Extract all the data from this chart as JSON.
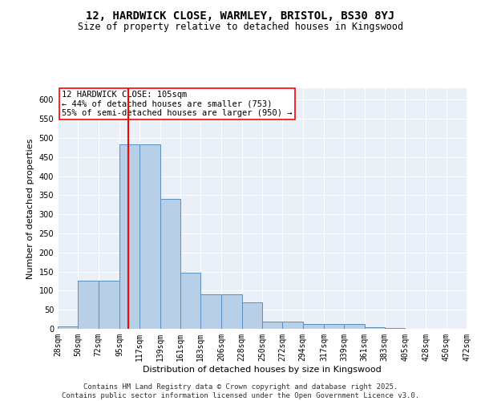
{
  "title1": "12, HARDWICK CLOSE, WARMLEY, BRISTOL, BS30 8YJ",
  "title2": "Size of property relative to detached houses in Kingswood",
  "xlabel": "Distribution of detached houses by size in Kingswood",
  "ylabel": "Number of detached properties",
  "bar_color": "#b8cfe8",
  "bar_edge_color": "#5a8fc2",
  "vline_x": 105,
  "vline_color": "red",
  "annotation_text": "12 HARDWICK CLOSE: 105sqm\n← 44% of detached houses are smaller (753)\n55% of semi-detached houses are larger (950) →",
  "annotation_box_color": "white",
  "annotation_box_edge": "red",
  "bin_edges": [
    28,
    50,
    72,
    95,
    117,
    139,
    161,
    183,
    206,
    228,
    250,
    272,
    294,
    317,
    339,
    361,
    383,
    405,
    428,
    450,
    472
  ],
  "bar_heights": [
    7,
    127,
    127,
    483,
    483,
    340,
    148,
    90,
    90,
    70,
    18,
    18,
    13,
    13,
    13,
    5,
    2,
    0,
    0,
    0
  ],
  "ylim": [
    0,
    630
  ],
  "yticks": [
    0,
    50,
    100,
    150,
    200,
    250,
    300,
    350,
    400,
    450,
    500,
    550,
    600
  ],
  "bg_color": "#eaf0f8",
  "footer": "Contains HM Land Registry data © Crown copyright and database right 2025.\nContains public sector information licensed under the Open Government Licence v3.0.",
  "title1_fontsize": 10,
  "title2_fontsize": 8.5,
  "xlabel_fontsize": 8,
  "ylabel_fontsize": 8,
  "tick_fontsize": 7,
  "footer_fontsize": 6.5,
  "annotation_fontsize": 7.5
}
